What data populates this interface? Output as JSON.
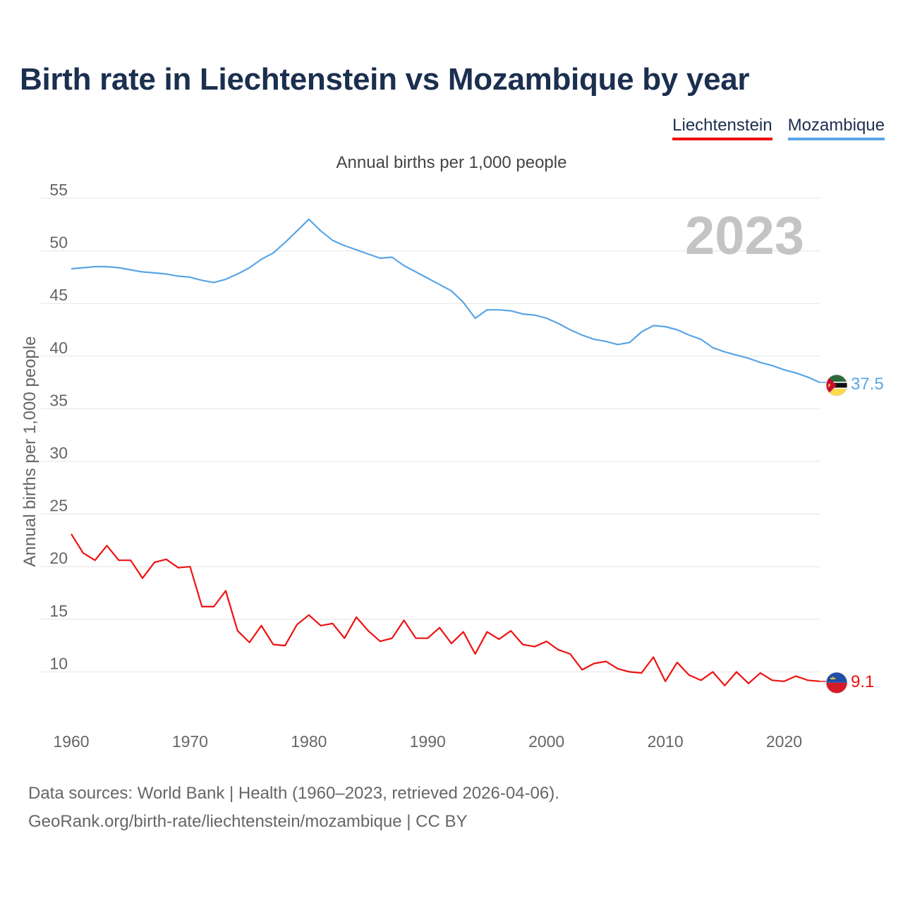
{
  "header": {
    "title": "Birth rate in Liechtenstein vs Mozambique by year",
    "subtitle": "Annual births per 1,000 people"
  },
  "legend": {
    "items": [
      {
        "label": "Liechtenstein",
        "color": "#ee1111"
      },
      {
        "label": "Mozambique",
        "color": "#5aa5e6"
      }
    ]
  },
  "footer": {
    "line1": "Data sources: World Bank | Health (1960–2023, retrieved 2026-04-06).",
    "line2": "GeoRank.org/birth-rate/liechtenstein/mozambique | CC BY"
  },
  "chart_data": {
    "type": "line",
    "title": "Birth rate in Liechtenstein vs Mozambique by year",
    "subtitle": "Annual births per 1,000 people",
    "xlabel": "",
    "ylabel": "Annual births per 1,000 people",
    "year_label": "2023",
    "xlim": [
      1960,
      2023
    ],
    "ylim": [
      5,
      55
    ],
    "x_ticks": [
      "1960",
      "1970",
      "1980",
      "1990",
      "2000",
      "2010",
      "2020"
    ],
    "y_ticks": [
      "10",
      "15",
      "20",
      "25",
      "30",
      "35",
      "40",
      "45",
      "50",
      "55"
    ],
    "grid": true,
    "x": [
      1960,
      1961,
      1962,
      1963,
      1964,
      1965,
      1966,
      1967,
      1968,
      1969,
      1970,
      1971,
      1972,
      1973,
      1974,
      1975,
      1976,
      1977,
      1978,
      1979,
      1980,
      1981,
      1982,
      1983,
      1984,
      1985,
      1986,
      1987,
      1988,
      1989,
      1990,
      1991,
      1992,
      1993,
      1994,
      1995,
      1996,
      1997,
      1998,
      1999,
      2000,
      2001,
      2002,
      2003,
      2004,
      2005,
      2006,
      2007,
      2008,
      2009,
      2010,
      2011,
      2012,
      2013,
      2014,
      2015,
      2016,
      2017,
      2018,
      2019,
      2020,
      2021,
      2022,
      2023
    ],
    "series": [
      {
        "name": "Liechtenstein",
        "color": "#ee1111",
        "end_label": "9.1",
        "values": [
          23.1,
          21.3,
          20.6,
          22.0,
          20.6,
          20.6,
          18.9,
          20.4,
          20.7,
          19.9,
          20.0,
          16.2,
          16.2,
          17.7,
          13.9,
          12.8,
          14.4,
          12.6,
          12.5,
          14.5,
          15.4,
          14.4,
          14.6,
          13.2,
          15.2,
          13.9,
          12.9,
          13.2,
          14.9,
          13.2,
          13.2,
          14.2,
          12.7,
          13.8,
          11.7,
          13.8,
          13.1,
          13.9,
          12.6,
          12.4,
          12.9,
          12.1,
          11.7,
          10.2,
          10.8,
          11.0,
          10.3,
          10.0,
          9.9,
          11.4,
          9.1,
          10.9,
          9.7,
          9.2,
          10.0,
          8.7,
          10.0,
          8.9,
          9.9,
          9.2,
          9.1,
          9.6,
          9.2,
          9.1
        ]
      },
      {
        "name": "Mozambique",
        "color": "#5aa5e6",
        "end_label": "37.5",
        "values": [
          48.3,
          48.4,
          48.5,
          48.5,
          48.4,
          48.2,
          48.0,
          47.9,
          47.8,
          47.6,
          47.5,
          47.2,
          47.0,
          47.3,
          47.8,
          48.4,
          49.2,
          49.8,
          50.8,
          51.9,
          53.0,
          51.9,
          51.0,
          50.5,
          50.1,
          49.7,
          49.3,
          49.4,
          48.6,
          48.0,
          47.4,
          46.8,
          46.2,
          45.1,
          43.6,
          44.4,
          44.4,
          44.3,
          44.0,
          43.9,
          43.6,
          43.1,
          42.5,
          42.0,
          41.6,
          41.4,
          41.1,
          41.3,
          42.3,
          42.9,
          42.8,
          42.5,
          42.0,
          41.6,
          40.8,
          40.4,
          40.1,
          39.8,
          39.4,
          39.1,
          38.7,
          38.4,
          38.0,
          37.5
        ]
      }
    ]
  }
}
